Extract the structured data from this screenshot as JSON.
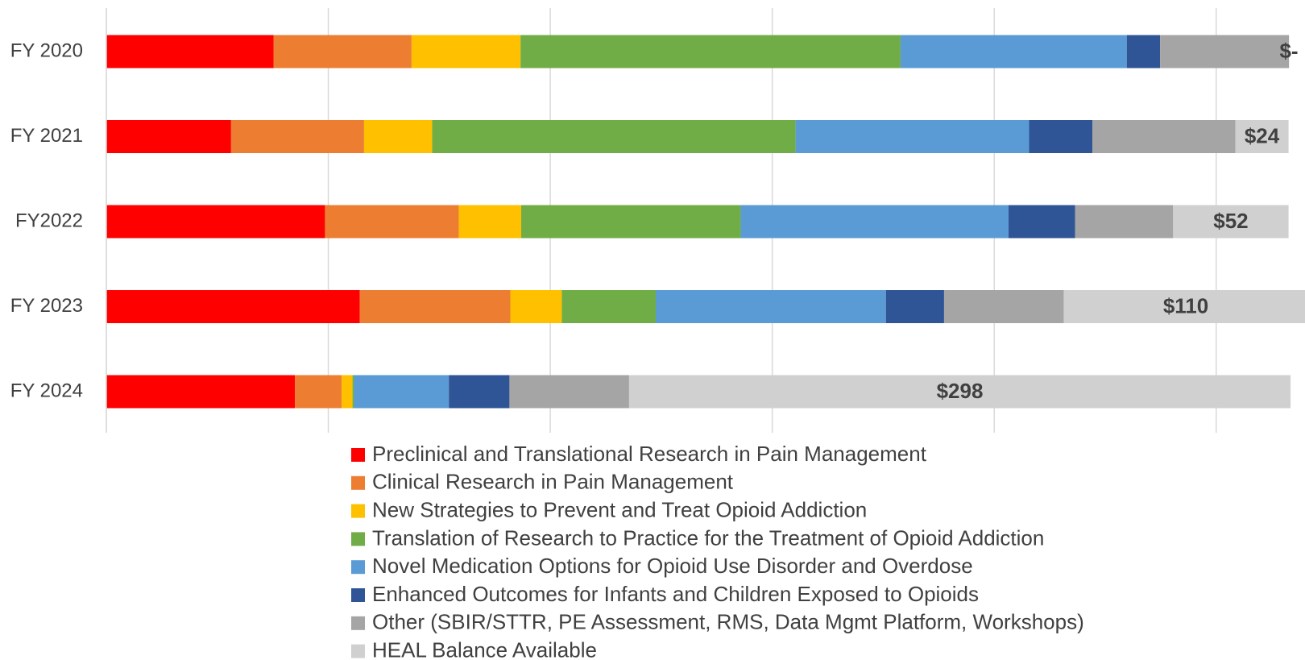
{
  "chart_data": {
    "type": "stacked_barh",
    "categories": [
      "FY 2020",
      "FY 2021",
      "FY2022",
      "FY 2023",
      "FY 2024"
    ],
    "series": [
      {
        "name": "Preclinical and Translational Research in Pain Management",
        "color": "#ff0000",
        "values": [
          75.3,
          56.2,
          98.5,
          114.2,
          85.0
        ]
      },
      {
        "name": "Clinical Research in Pain Management",
        "color": "#ed7d31",
        "values": [
          62.2,
          59.9,
          60.3,
          67.8,
          21.0
        ]
      },
      {
        "name": "New Strategies to Prevent and Treat Opioid Addiction",
        "color": "#ffc000",
        "values": [
          49.1,
          30.7,
          28.1,
          23.2,
          4.9
        ]
      },
      {
        "name": "Translation of Research to Practice for the Treatment of Opioid Addiction",
        "color": "#70ad47",
        "values": [
          171.2,
          163.7,
          98.9,
          42.3,
          0.7
        ]
      },
      {
        "name": "Novel Medication Options for Opioid Use Disorder and Overdose",
        "color": "#5b9bd5",
        "values": [
          101.9,
          105.2,
          120.6,
          103.7,
          42.7
        ]
      },
      {
        "name": "Enhanced Outcomes for Infants and Children Exposed to Opioids",
        "color": "#2f5597",
        "values": [
          15.0,
          28.5,
          30.0,
          26.2,
          27.3
        ]
      },
      {
        "name": "Other (SBIR/STTR, PE Assessment, RMS, Data Mgmt Platform, Workshops)",
        "color": "#a5a5a5",
        "values": [
          58.1,
          64.4,
          44.2,
          53.9,
          53.9
        ]
      },
      {
        "name": "HEAL Balance Available",
        "color": "#d0d0d0",
        "values": [
          0,
          24,
          52,
          110,
          298
        ],
        "value_labels": [
          "$-",
          "$24",
          "$52",
          "$110",
          "$298"
        ]
      }
    ],
    "xlim": [
      0,
      540
    ],
    "xticks": [
      0,
      100,
      200,
      300,
      400,
      500
    ],
    "grid": true
  }
}
